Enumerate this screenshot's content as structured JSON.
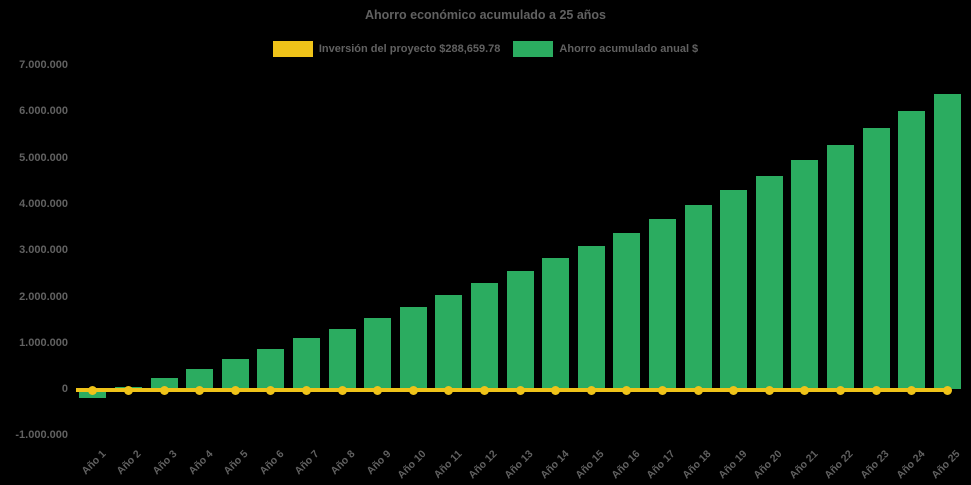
{
  "chart_data": {
    "type": "bar",
    "title": "Ahorro económico acumulado a 25 años",
    "categories": [
      "Año 1",
      "Año 2",
      "Año 3",
      "Año 4",
      "Año 5",
      "Año 6",
      "Año 7",
      "Año 8",
      "Año 9",
      "Año 10",
      "Año 11",
      "Año 12",
      "Año 13",
      "Año 14",
      "Año 15",
      "Año 16",
      "Año 17",
      "Año 18",
      "Año 19",
      "Año 20",
      "Año 21",
      "Año 22",
      "Año 23",
      "Año 24",
      "Año 25"
    ],
    "series": [
      {
        "name": "Inversión del proyecto $288,659.78",
        "type": "line",
        "marker": "circle",
        "color": "#EFC319",
        "values": [
          0,
          0,
          0,
          0,
          0,
          0,
          0,
          0,
          0,
          0,
          0,
          0,
          0,
          0,
          0,
          0,
          0,
          0,
          0,
          0,
          0,
          0,
          0,
          0,
          0
        ]
      },
      {
        "name": "Ahorro acumulado anual $",
        "type": "bar",
        "color": "#2BAC60",
        "values": [
          -185000,
          45000,
          240000,
          435000,
          650000,
          875000,
          1095000,
          1300000,
          1530000,
          1770000,
          2035000,
          2290000,
          2545000,
          2830000,
          3085000,
          3375000,
          3675000,
          3985000,
          4295000,
          4600000,
          4955000,
          5280000,
          5635000,
          6015000,
          6375000
        ]
      }
    ],
    "ylim": [
      -1000000,
      7000000
    ],
    "ytick_interval": 1000000,
    "ytick_labels": [
      "7.000.000",
      "6.000.000",
      "5.000.000",
      "4.000.000",
      "3.000.000",
      "2.000.000",
      "1.000.000",
      "0",
      "-1.000.000"
    ],
    "grid": false,
    "legend_position": "top-center",
    "background_color": "#000000",
    "text_color": "#616161"
  }
}
